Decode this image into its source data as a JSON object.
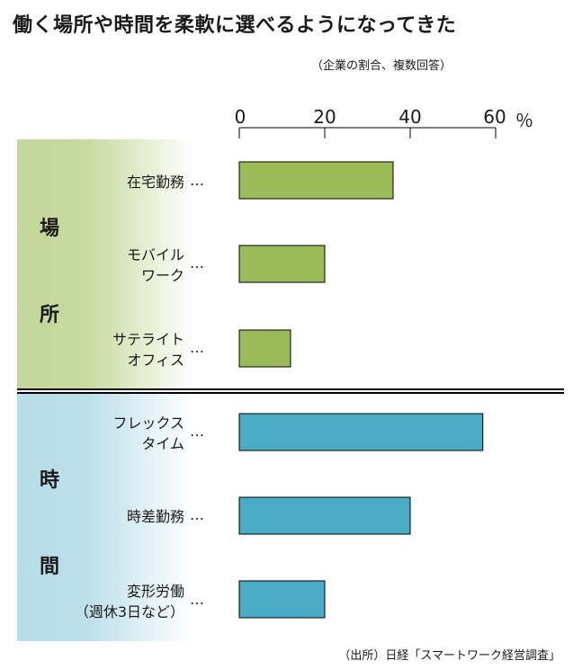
{
  "title": "働く場所や時間を柔軟に選べるようになってきた",
  "subtitle": "（企業の割合、複数回答）",
  "unit": "％",
  "groups": {
    "place": {
      "char1": "場",
      "char2": "所",
      "color": "#9bbb59"
    },
    "time": {
      "char1": "時",
      "char2": "間",
      "color": "#4bacc6"
    }
  },
  "labels": [
    {
      "line1": "在宅勤務",
      "line2": ""
    },
    {
      "line1": "モバイル",
      "line2": "ワーク"
    },
    {
      "line1": "サテライト",
      "line2": "オフィス"
    },
    {
      "line1": "フレックス",
      "line2": "タイム"
    },
    {
      "line1": "時差勤務",
      "line2": ""
    },
    {
      "line1": "変形労働",
      "line2": "（週休3日など）"
    }
  ],
  "dots": "…",
  "source": "（出所）日経「スマートワーク経営調査」",
  "chart_data": {
    "type": "bar",
    "orientation": "horizontal",
    "categories": [
      "在宅勤務",
      "モバイルワーク",
      "サテライトオフィス",
      "フレックスタイム",
      "時差勤務",
      "変形労働（週休3日など）"
    ],
    "values": [
      36,
      20,
      12,
      57,
      40,
      20
    ],
    "xlim": [
      0,
      60
    ],
    "xticks": [
      0,
      20,
      40,
      60
    ],
    "xtick_labels": [
      "0",
      "20",
      "40",
      "60"
    ],
    "grid": false,
    "legend": "none"
  }
}
